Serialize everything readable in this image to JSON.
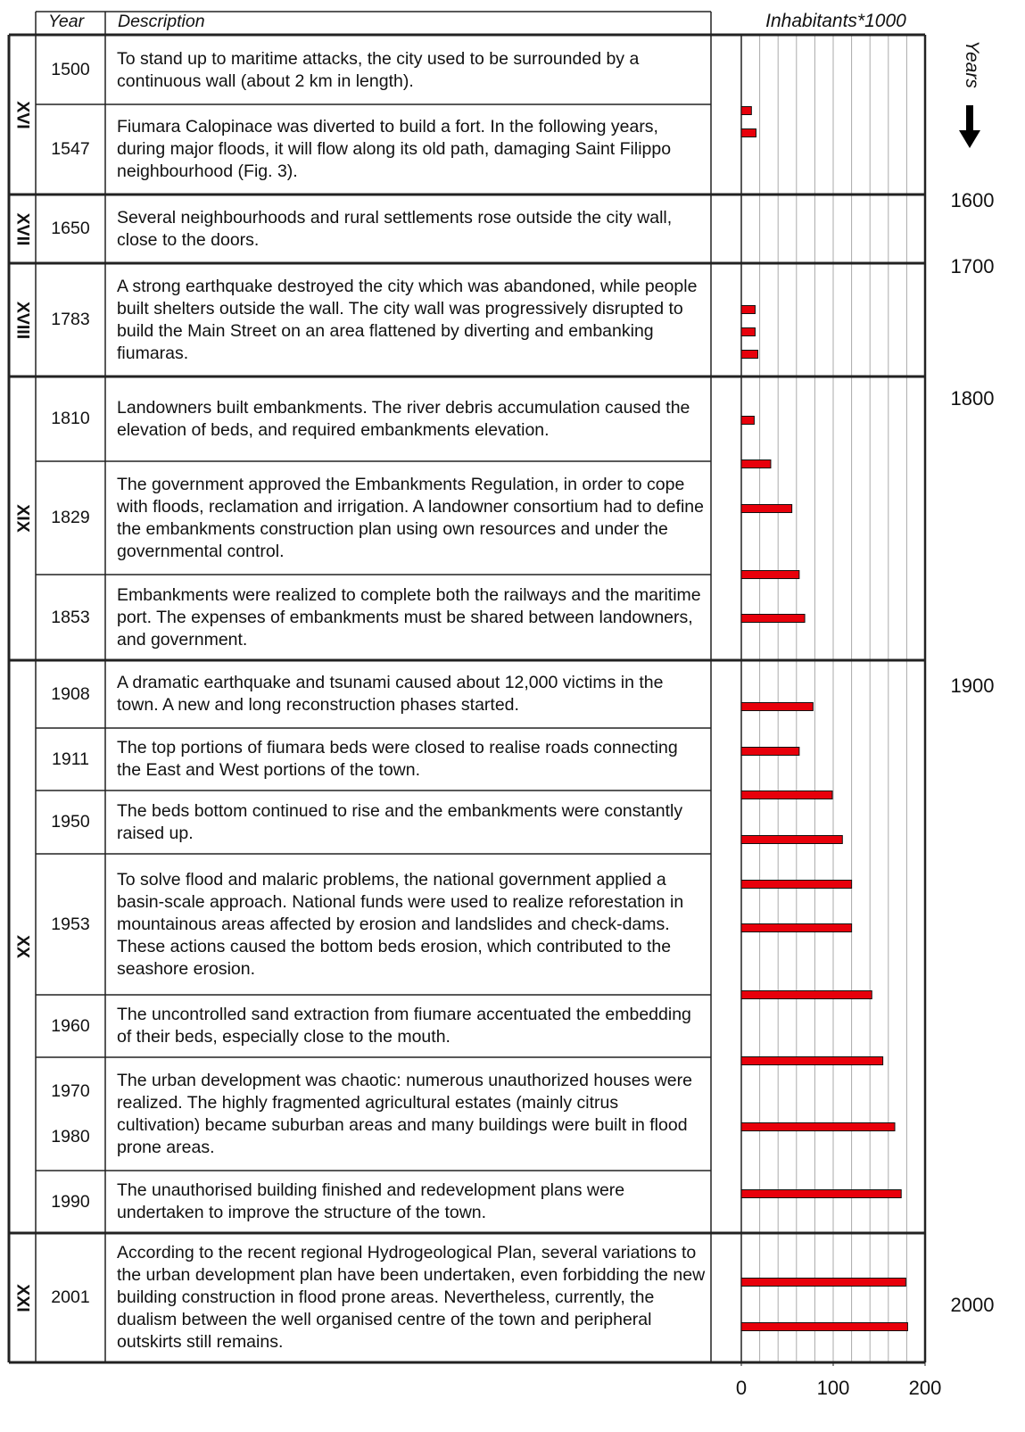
{
  "table": {
    "header": {
      "year": "Year",
      "description": "Description"
    },
    "groups": [
      {
        "century": "XVI",
        "rows": [
          {
            "years": [
              "1500"
            ],
            "text": "To stand up to maritime attacks, the city used to be surrounded by a continuous wall (about 2 km in length)."
          },
          {
            "years": [
              "1547"
            ],
            "text": "Fiumara Calopinace was diverted to build a fort. In the following years, during major floods, it will flow along its old path, damaging Saint Filippo neighbourhood (Fig. 3)."
          }
        ]
      },
      {
        "century": "XVII",
        "rows": [
          {
            "years": [
              "1650"
            ],
            "text": "Several neighbourhoods and rural settlements rose outside the city wall, close to the doors."
          }
        ]
      },
      {
        "century": "XVIII",
        "rows": [
          {
            "years": [
              "1783"
            ],
            "text": "A strong earthquake destroyed the city which was abandoned, while people built shelters outside the wall. The city wall was progressively disrupted to build the Main Street on an area flattened by diverting and embanking fiumaras."
          }
        ]
      },
      {
        "century": "XIX",
        "rows": [
          {
            "years": [
              "1810"
            ],
            "text": "Landowners built embankments. The river debris accumulation caused the elevation of beds, and required embankments elevation."
          },
          {
            "years": [
              "1829"
            ],
            "text": "The government approved the Embankments Regulation, in order to cope with floods, reclamation and irrigation. A landowner consortium had to define the embankments construction plan using own resources and under the governmental control."
          },
          {
            "years": [
              "1853"
            ],
            "text": "Embankments were realized to complete both the railways and the maritime port. The expenses of embankments must be shared between landowners, and government."
          }
        ]
      },
      {
        "century": "XX",
        "rows": [
          {
            "years": [
              "1908"
            ],
            "text": "A dramatic earthquake and tsunami caused about 12,000 victims in the town. A new and long reconstruction phases started."
          },
          {
            "years": [
              "1911"
            ],
            "text": "The top portions of fiumara beds were closed to realise roads connecting the East and West portions of the town."
          },
          {
            "years": [
              "1950"
            ],
            "text": "The beds bottom continued to rise and the embankments were constantly raised up."
          },
          {
            "years": [
              "1953"
            ],
            "text": "To solve flood and malaric problems, the national government applied a basin-scale approach. National funds were used to realize reforestation in mountainous areas affected by erosion and landslides and check-dams. These actions caused the bottom beds erosion, which contributed to the seashore erosion."
          },
          {
            "years": [
              "1960"
            ],
            "text": "The uncontrolled sand extraction from fiumare accentuated the embedding of their beds, especially close to the mouth."
          },
          {
            "years": [
              "1970",
              "1980"
            ],
            "text": "The urban development was chaotic: numerous unauthorized houses were realized. The highly fragmented agricultural estates (mainly citrus cultivation) became suburban areas and many buildings were built in flood prone areas."
          },
          {
            "years": [
              "1990"
            ],
            "text": "The unauthorised building finished and redevelopment plans were undertaken to improve the structure of the town."
          }
        ]
      },
      {
        "century": "XXI",
        "rows": [
          {
            "years": [
              "2001"
            ],
            "text": "According to the recent regional Hydrogeological Plan, several variations to the urban development plan have been undertaken, even forbidding the new building construction in flood prone areas. Nevertheless, currently, the dualism between the well organised centre of the town and peripheral outskirts still remains."
          }
        ]
      }
    ]
  },
  "chart_data": {
    "type": "bar",
    "orientation": "horizontal",
    "title": "Inhabitants*1000",
    "values": [
      11,
      16,
      15,
      15,
      18,
      14,
      32,
      55,
      63,
      69,
      78,
      63,
      99,
      110,
      120,
      120,
      142,
      154,
      167,
      174,
      179,
      181
    ],
    "color": "#e8000b",
    "xlim": [
      0,
      200
    ],
    "xticks": [
      0,
      100,
      200
    ],
    "minor_xticks": [
      20,
      40,
      60,
      80,
      100,
      120,
      140,
      160,
      180
    ],
    "grid": true,
    "y_axis_label": "Years",
    "year_labels": [
      1600,
      1700,
      1800,
      1900,
      2000
    ]
  }
}
